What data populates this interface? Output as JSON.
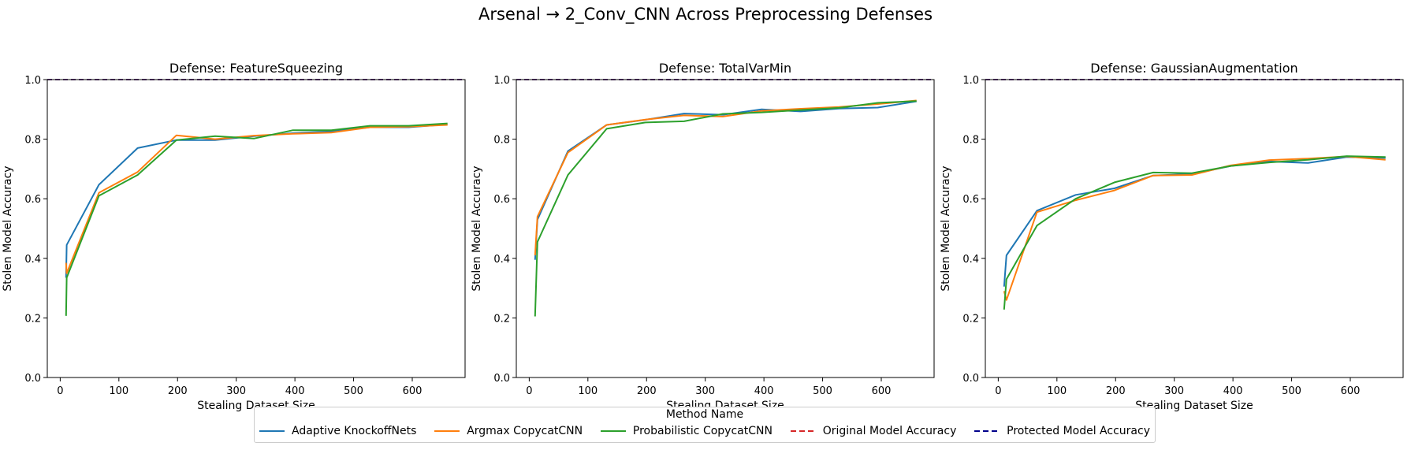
{
  "title": "Arsenal → 2_Conv_CNN Across Preprocessing Defenses",
  "legend": {
    "title": "Method Name",
    "items": [
      {
        "label": "Adaptive KnockoffNets",
        "color": "#1f77b4",
        "dash": false
      },
      {
        "label": "Argmax CopycatCNN",
        "color": "#ff7f0e",
        "dash": false
      },
      {
        "label": "Probabilistic CopycatCNN",
        "color": "#2ca02c",
        "dash": false
      },
      {
        "label": "Original Model Accuracy",
        "color": "#d62728",
        "dash": true
      },
      {
        "label": "Protected Model Accuracy",
        "color": "#00008b",
        "dash": true
      }
    ]
  },
  "chart_data": [
    {
      "type": "line",
      "title": "Defense: FeatureSqueezing",
      "xlabel": "Stealing Dataset Size",
      "ylabel": "Stolen Model Accuracy",
      "xlim": [
        -22,
        690
      ],
      "ylim": [
        0,
        1.0
      ],
      "xticks": [
        0,
        100,
        200,
        300,
        400,
        500,
        600
      ],
      "yticks": [
        0.0,
        0.2,
        0.4,
        0.6,
        0.8,
        1.0
      ],
      "hlines": [
        {
          "name": "Original Model Accuracy",
          "y": 1.0,
          "color": "#d62728"
        },
        {
          "name": "Protected Model Accuracy",
          "y": 1.0,
          "color": "#00008b"
        }
      ],
      "series": [
        {
          "name": "Adaptive KnockoffNets",
          "color": "#1f77b4",
          "x": [
            10,
            11,
            66,
            132,
            198,
            264,
            330,
            396,
            462,
            528,
            594,
            660
          ],
          "y": [
            0.335,
            0.445,
            0.647,
            0.77,
            0.797,
            0.797,
            0.81,
            0.82,
            0.826,
            0.84,
            0.84,
            0.85
          ]
        },
        {
          "name": "Argmax CopycatCNN",
          "color": "#ff7f0e",
          "x": [
            10,
            11,
            66,
            132,
            198,
            264,
            330,
            396,
            462,
            528,
            594,
            660
          ],
          "y": [
            0.385,
            0.35,
            0.62,
            0.69,
            0.813,
            0.8,
            0.812,
            0.818,
            0.822,
            0.84,
            0.842,
            0.848
          ]
        },
        {
          "name": "Probabilistic CopycatCNN",
          "color": "#2ca02c",
          "x": [
            10,
            11,
            66,
            132,
            198,
            264,
            330,
            396,
            462,
            528,
            594,
            660
          ],
          "y": [
            0.207,
            0.335,
            0.61,
            0.68,
            0.797,
            0.81,
            0.802,
            0.83,
            0.83,
            0.845,
            0.845,
            0.853
          ]
        }
      ]
    },
    {
      "type": "line",
      "title": "Defense: TotalVarMin",
      "xlabel": "Stealing Dataset Size",
      "ylabel": "Stolen Model Accuracy",
      "xlim": [
        -22,
        690
      ],
      "ylim": [
        0,
        1.0
      ],
      "xticks": [
        0,
        100,
        200,
        300,
        400,
        500,
        600
      ],
      "yticks": [
        0.0,
        0.2,
        0.4,
        0.6,
        0.8,
        1.0
      ],
      "hlines": [
        {
          "name": "Original Model Accuracy",
          "y": 1.0,
          "color": "#d62728"
        },
        {
          "name": "Protected Model Accuracy",
          "y": 1.0,
          "color": "#00008b"
        }
      ],
      "series": [
        {
          "name": "Adaptive KnockoffNets",
          "color": "#1f77b4",
          "x": [
            10,
            14,
            66,
            132,
            198,
            264,
            330,
            396,
            462,
            528,
            594,
            660
          ],
          "y": [
            0.395,
            0.53,
            0.76,
            0.848,
            0.865,
            0.886,
            0.882,
            0.9,
            0.893,
            0.903,
            0.906,
            0.927
          ]
        },
        {
          "name": "Argmax CopycatCNN",
          "color": "#ff7f0e",
          "x": [
            10,
            14,
            66,
            132,
            198,
            264,
            330,
            396,
            462,
            528,
            594,
            660
          ],
          "y": [
            0.41,
            0.54,
            0.755,
            0.848,
            0.866,
            0.88,
            0.876,
            0.895,
            0.902,
            0.908,
            0.918,
            0.93
          ]
        },
        {
          "name": "Probabilistic CopycatCNN",
          "color": "#2ca02c",
          "x": [
            10,
            14,
            66,
            132,
            198,
            264,
            330,
            396,
            462,
            528,
            594,
            660
          ],
          "y": [
            0.205,
            0.455,
            0.68,
            0.835,
            0.856,
            0.86,
            0.885,
            0.89,
            0.898,
            0.905,
            0.922,
            0.928
          ]
        }
      ]
    },
    {
      "type": "line",
      "title": "Defense: GaussianAugmentation",
      "xlabel": "Stealing Dataset Size",
      "ylabel": "Stolen Model Accuracy",
      "xlim": [
        -22,
        690
      ],
      "ylim": [
        0,
        1.0
      ],
      "xticks": [
        0,
        100,
        200,
        300,
        400,
        500,
        600
      ],
      "yticks": [
        0.0,
        0.2,
        0.4,
        0.6,
        0.8,
        1.0
      ],
      "hlines": [
        {
          "name": "Original Model Accuracy",
          "y": 1.0,
          "color": "#d62728"
        },
        {
          "name": "Protected Model Accuracy",
          "y": 1.0,
          "color": "#00008b"
        }
      ],
      "series": [
        {
          "name": "Adaptive KnockoffNets",
          "color": "#1f77b4",
          "x": [
            10,
            14,
            66,
            132,
            198,
            264,
            330,
            396,
            462,
            528,
            594,
            660
          ],
          "y": [
            0.305,
            0.41,
            0.56,
            0.613,
            0.635,
            0.678,
            0.683,
            0.71,
            0.725,
            0.72,
            0.74,
            0.737
          ]
        },
        {
          "name": "Argmax CopycatCNN",
          "color": "#ff7f0e",
          "x": [
            10,
            14,
            66,
            132,
            198,
            264,
            330,
            396,
            462,
            528,
            594,
            660
          ],
          "y": [
            0.29,
            0.26,
            0.555,
            0.595,
            0.628,
            0.678,
            0.68,
            0.712,
            0.73,
            0.735,
            0.742,
            0.731
          ]
        },
        {
          "name": "Probabilistic CopycatCNN",
          "color": "#2ca02c",
          "x": [
            10,
            14,
            66,
            132,
            198,
            264,
            330,
            396,
            462,
            528,
            594,
            660
          ],
          "y": [
            0.228,
            0.33,
            0.51,
            0.6,
            0.655,
            0.688,
            0.686,
            0.71,
            0.722,
            0.731,
            0.743,
            0.74
          ]
        }
      ]
    }
  ]
}
